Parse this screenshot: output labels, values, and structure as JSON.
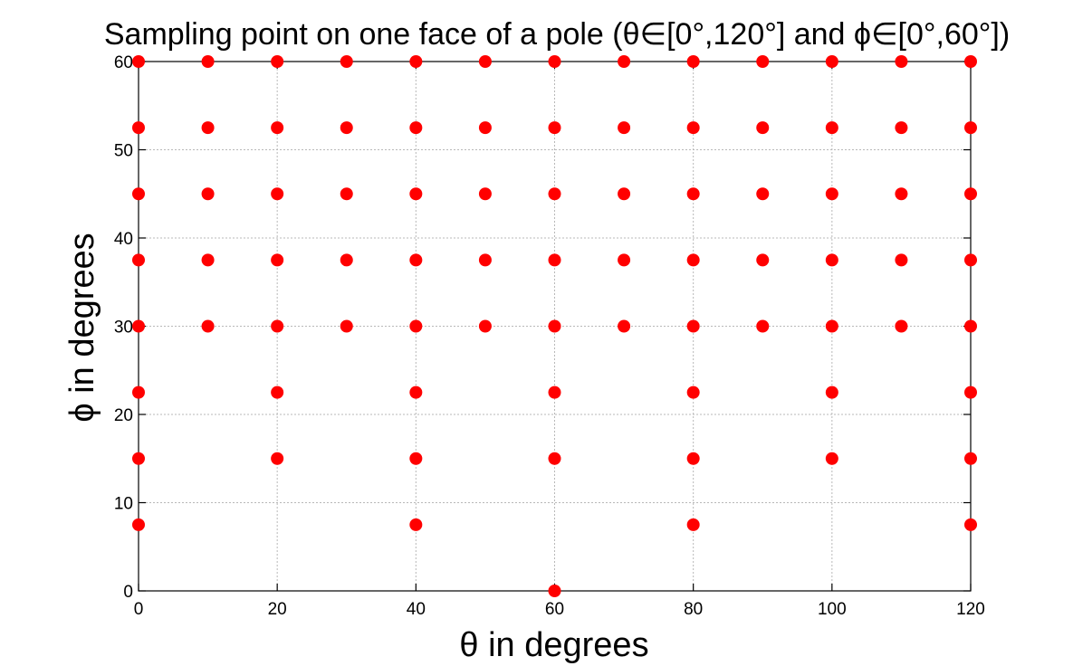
{
  "chart_data": {
    "type": "scatter",
    "title": "Sampling point on one face of a pole (θ∈[0°,120°] and ϕ∈[0°,60°])",
    "xlabel": "θ in degrees",
    "ylabel": "ϕ in degrees",
    "xlim": [
      0,
      120
    ],
    "ylim": [
      0,
      60
    ],
    "xticks": [
      0,
      20,
      40,
      60,
      80,
      100,
      120
    ],
    "yticks": [
      0,
      10,
      20,
      30,
      40,
      50,
      60
    ],
    "grid": true,
    "marker_color": "#ff0000",
    "series": [
      {
        "points": [
          [
            60,
            0
          ],
          [
            0,
            7.5
          ],
          [
            40,
            7.5
          ],
          [
            80,
            7.5
          ],
          [
            120,
            7.5
          ],
          [
            0,
            15
          ],
          [
            20,
            15
          ],
          [
            40,
            15
          ],
          [
            60,
            15
          ],
          [
            80,
            15
          ],
          [
            100,
            15
          ],
          [
            120,
            15
          ],
          [
            0,
            22.5
          ],
          [
            20,
            22.5
          ],
          [
            40,
            22.5
          ],
          [
            60,
            22.5
          ],
          [
            80,
            22.5
          ],
          [
            100,
            22.5
          ],
          [
            120,
            22.5
          ],
          [
            0,
            30
          ],
          [
            10,
            30
          ],
          [
            20,
            30
          ],
          [
            30,
            30
          ],
          [
            40,
            30
          ],
          [
            50,
            30
          ],
          [
            60,
            30
          ],
          [
            70,
            30
          ],
          [
            80,
            30
          ],
          [
            90,
            30
          ],
          [
            100,
            30
          ],
          [
            110,
            30
          ],
          [
            120,
            30
          ],
          [
            0,
            37.5
          ],
          [
            10,
            37.5
          ],
          [
            20,
            37.5
          ],
          [
            30,
            37.5
          ],
          [
            40,
            37.5
          ],
          [
            50,
            37.5
          ],
          [
            60,
            37.5
          ],
          [
            70,
            37.5
          ],
          [
            80,
            37.5
          ],
          [
            90,
            37.5
          ],
          [
            100,
            37.5
          ],
          [
            110,
            37.5
          ],
          [
            120,
            37.5
          ],
          [
            0,
            45
          ],
          [
            10,
            45
          ],
          [
            20,
            45
          ],
          [
            30,
            45
          ],
          [
            40,
            45
          ],
          [
            50,
            45
          ],
          [
            60,
            45
          ],
          [
            70,
            45
          ],
          [
            80,
            45
          ],
          [
            90,
            45
          ],
          [
            100,
            45
          ],
          [
            110,
            45
          ],
          [
            120,
            45
          ],
          [
            0,
            52.5
          ],
          [
            10,
            52.5
          ],
          [
            20,
            52.5
          ],
          [
            30,
            52.5
          ],
          [
            40,
            52.5
          ],
          [
            50,
            52.5
          ],
          [
            60,
            52.5
          ],
          [
            70,
            52.5
          ],
          [
            80,
            52.5
          ],
          [
            90,
            52.5
          ],
          [
            100,
            52.5
          ],
          [
            110,
            52.5
          ],
          [
            120,
            52.5
          ],
          [
            0,
            60
          ],
          [
            10,
            60
          ],
          [
            20,
            60
          ],
          [
            30,
            60
          ],
          [
            40,
            60
          ],
          [
            50,
            60
          ],
          [
            60,
            60
          ],
          [
            70,
            60
          ],
          [
            80,
            60
          ],
          [
            90,
            60
          ],
          [
            100,
            60
          ],
          [
            110,
            60
          ],
          [
            120,
            60
          ]
        ]
      }
    ]
  }
}
